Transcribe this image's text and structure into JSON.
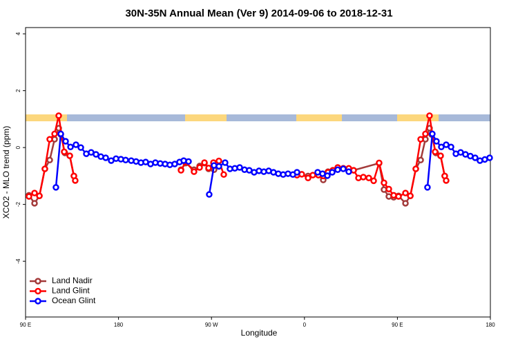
{
  "chart_data": {
    "type": "line",
    "title": "30N-35N Annual Mean (Ver 9)   2014-09-06 to 2018-12-31",
    "x_label": "Longitude",
    "y_label": "XCO2 - MLO trend (ppm)",
    "xlim": [
      90,
      540
    ],
    "ylim": [
      -5.96,
      4.22
    ],
    "xticks": [
      {
        "value": 90,
        "label": "90 E"
      },
      {
        "value": 180,
        "label": "180"
      },
      {
        "value": 270,
        "label": "90 W"
      },
      {
        "value": 360,
        "label": "0"
      },
      {
        "value": 450,
        "label": "90 E"
      },
      {
        "value": 540,
        "label": "180"
      }
    ],
    "yticks": [
      -4,
      -2,
      0,
      2,
      4
    ],
    "grid": false,
    "legend": "bottom-left",
    "series": [
      {
        "name": "Land Nadir",
        "color": "#a33a3a",
        "x": [
          93.3,
          98.7,
          103.4,
          108.7,
          113.4,
          118.1,
          122.1,
          124.1,
          128.1,
          132.8,
          136.8,
          null,
          240.5,
          245.1,
          253.1,
          258.5,
          263.2,
          267.2,
          272.5,
          null,
          352.8,
          363.5,
          373.5,
          378.2,
          382.8,
          387.5,
          397.6,
          407.6,
          432.3,
          437.0,
          441.7,
          446.4,
          451.1,
          457.8,
          462.5,
          467.8,
          472.5,
          477.1,
          481.1,
          483.1,
          487.2,
          491.8,
          495.8
        ],
        "values": [
          -1.68,
          -1.96,
          -1.7,
          -0.75,
          -0.44,
          0.29,
          0.68,
          0.46,
          -0.19,
          -0.29,
          -1.0,
          null,
          -0.78,
          -0.55,
          -0.78,
          -0.65,
          -0.55,
          -0.75,
          -0.78,
          null,
          -0.97,
          -1.0,
          -0.97,
          -1.14,
          -0.85,
          -0.8,
          -0.73,
          -0.8,
          -0.55,
          -1.48,
          -1.72,
          -1.75,
          -1.7,
          -1.96,
          -1.7,
          -0.75,
          -0.44,
          0.29,
          0.68,
          0.46,
          -0.19,
          -0.29,
          -1.0
        ]
      },
      {
        "name": "Land Glint",
        "color": "#ff0000",
        "x": [
          93.3,
          98.7,
          103.4,
          108.7,
          113.4,
          118.1,
          122.1,
          127.4,
          132.8,
          136.8,
          138.1,
          null,
          240.5,
          245.1,
          253.1,
          258.5,
          263.2,
          267.2,
          271.9,
          277.2,
          281.9,
          null,
          352.8,
          357.4,
          363.5,
          368.1,
          373.5,
          378.2,
          382.8,
          387.5,
          392.2,
          397.6,
          402.9,
          407.6,
          412.3,
          417.0,
          422.3,
          427.0,
          432.3,
          437.0,
          441.7,
          446.4,
          451.1,
          457.8,
          462.5,
          467.8,
          472.5,
          477.1,
          481.1,
          486.5,
          491.8,
          495.8,
          497.2
        ],
        "values": [
          -1.72,
          -1.6,
          -1.7,
          -0.75,
          0.29,
          0.48,
          1.12,
          -0.15,
          -0.29,
          -1.0,
          -1.16,
          null,
          -0.8,
          -0.5,
          -0.85,
          -0.7,
          -0.53,
          -0.72,
          -0.53,
          -0.47,
          -0.95,
          null,
          -0.97,
          -0.94,
          -1.07,
          -0.97,
          -0.97,
          -1.0,
          -0.87,
          -0.8,
          -0.7,
          -0.73,
          -0.73,
          -0.8,
          -1.07,
          -1.04,
          -1.07,
          -1.17,
          -0.54,
          -1.24,
          -1.46,
          -1.68,
          -1.72,
          -1.6,
          -1.7,
          -0.75,
          0.29,
          0.48,
          1.12,
          -0.15,
          -0.29,
          -1.0,
          -1.16
        ]
      },
      {
        "name": "Ocean Glint",
        "color": "#0000ff",
        "x": [
          119.4,
          124.1,
          128.8,
          133.5,
          138.8,
          143.5,
          148.8,
          153.5,
          158.2,
          162.9,
          167.6,
          172.9,
          177.6,
          182.3,
          186.9,
          192.3,
          197.0,
          201.7,
          206.3,
          211.0,
          215.7,
          220.4,
          225.1,
          229.7,
          234.4,
          239.1,
          243.1,
          247.8,
          null,
          267.8,
          272.5,
          277.2,
          283.2,
          287.9,
          292.6,
          297.3,
          302.0,
          306.6,
          311.3,
          316.0,
          320.7,
          325.4,
          330.0,
          334.7,
          339.4,
          344.1,
          348.8,
          352.8,
          null,
          372.8,
          377.5,
          382.2,
          386.9,
          392.2,
          397.6,
          402.9,
          null,
          479.1,
          483.8,
          487.8,
          492.5,
          497.2,
          501.9,
          506.6,
          511.2,
          515.9,
          520.6,
          525.3,
          529.9,
          534.6,
          539.3
        ],
        "values": [
          -1.4,
          0.48,
          0.22,
          0.02,
          0.1,
          0.0,
          -0.22,
          -0.17,
          -0.24,
          -0.32,
          -0.36,
          -0.46,
          -0.39,
          -0.41,
          -0.44,
          -0.46,
          -0.49,
          -0.53,
          -0.51,
          -0.58,
          -0.53,
          -0.56,
          -0.58,
          -0.61,
          -0.58,
          -0.51,
          -0.46,
          -0.49,
          null,
          -1.65,
          -0.63,
          -0.66,
          -0.53,
          -0.75,
          -0.73,
          -0.7,
          -0.78,
          -0.8,
          -0.87,
          -0.82,
          -0.85,
          -0.82,
          -0.87,
          -0.92,
          -0.95,
          -0.92,
          -0.95,
          -0.87,
          null,
          -0.87,
          -0.92,
          -0.99,
          -0.87,
          -0.78,
          -0.75,
          -0.85,
          null,
          -1.4,
          0.48,
          0.22,
          0.02,
          0.1,
          0.02,
          -0.22,
          -0.17,
          -0.24,
          -0.3,
          -0.36,
          -0.46,
          -0.42,
          -0.36
        ]
      }
    ]
  }
}
